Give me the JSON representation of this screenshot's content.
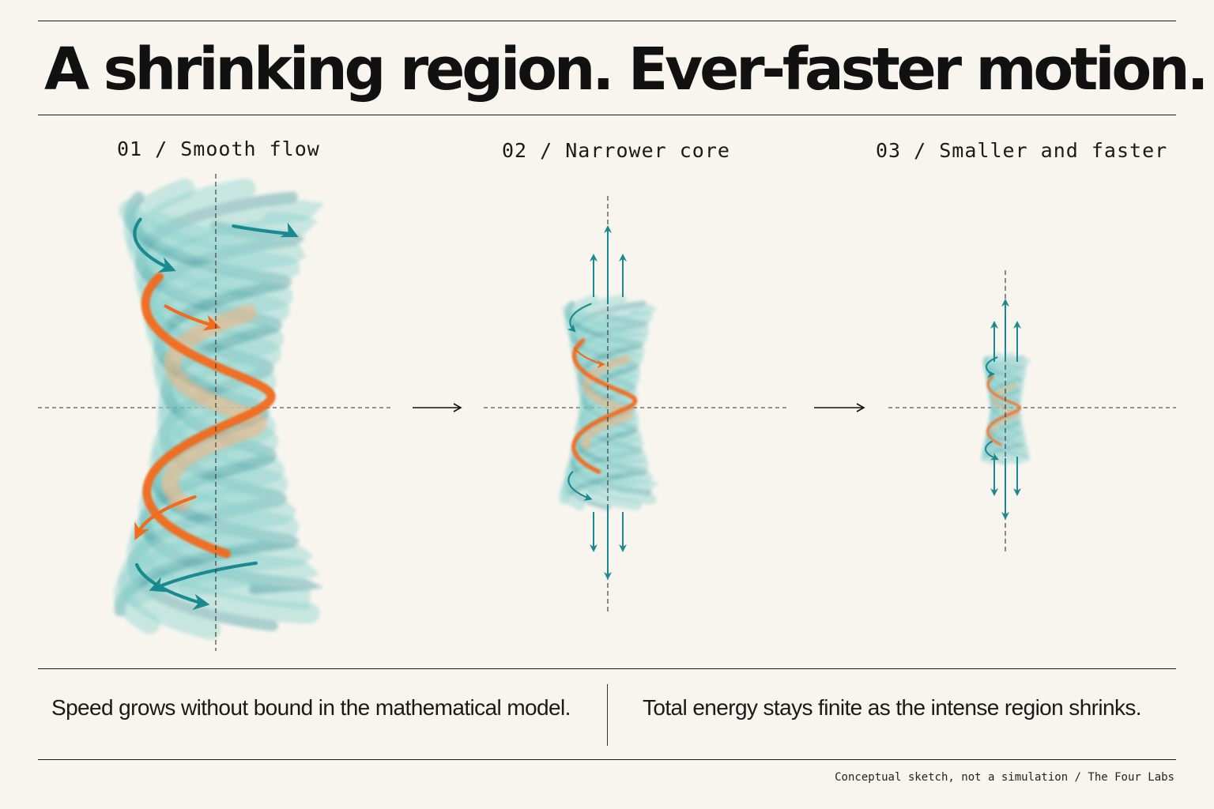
{
  "title": "A shrinking region. Ever-faster motion.",
  "panels": [
    {
      "label": "01 / Smooth flow"
    },
    {
      "label": "02 / Narrower core"
    },
    {
      "label": "03 / Smaller and faster"
    }
  ],
  "captions": {
    "left": "Speed grows without bound in the mathematical model.",
    "right": "Total energy stays finite as the intense region shrinks."
  },
  "credit": "Conceptual sketch, not a simulation / The Four Labs",
  "colors": {
    "background": "#f8f5ef",
    "teal_light": "#8fd3cf",
    "teal_dark": "#1a8a90",
    "orange": "#f26a1b",
    "orange_light": "#f7b37e",
    "ink": "#111111"
  },
  "icons": [
    "right-arrow-icon",
    "up-arrow-icon",
    "down-arrow-icon",
    "curved-arrow-icon"
  ]
}
